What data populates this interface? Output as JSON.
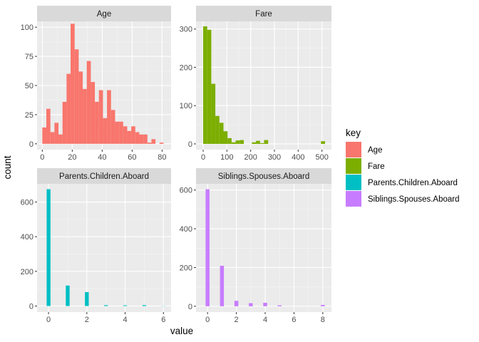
{
  "chart_data": {
    "type": "bar",
    "xlabel": "value",
    "ylabel": "count",
    "legend": {
      "title": "key",
      "position": "right",
      "entries": [
        {
          "label": "Age",
          "color": "#F8766D"
        },
        {
          "label": "Fare",
          "color": "#7CAE00"
        },
        {
          "label": "Parents.Children.Aboard",
          "color": "#00BFC4"
        },
        {
          "label": "Siblings.Spouses.Aboard",
          "color": "#C77CFF"
        }
      ]
    },
    "facets": [
      {
        "name": "Age",
        "color": "#F8766D",
        "xlim": [
          -3.5,
          86
        ],
        "ylim": [
          -5,
          105
        ],
        "xticks": [
          0,
          20,
          40,
          60,
          80
        ],
        "yticks": [
          0,
          25,
          50,
          75,
          100
        ],
        "bin_width": 2.7,
        "bins_start": 0,
        "values": [
          14,
          30,
          10,
          18,
          8,
          36,
          60,
          103,
          81,
          62,
          47,
          71,
          53,
          36,
          46,
          22,
          46,
          29,
          19,
          19,
          15,
          11,
          15,
          10,
          8,
          8,
          1,
          4,
          0,
          1
        ]
      },
      {
        "name": "Fare",
        "color": "#7CAE00",
        "xlim": [
          -30,
          540
        ],
        "ylim": [
          -15,
          320
        ],
        "xticks": [
          0,
          100,
          200,
          300,
          400,
          500
        ],
        "yticks": [
          0,
          100,
          200,
          300
        ],
        "bin_width": 17.1,
        "bins_start": 0,
        "values": [
          307,
          298,
          157,
          73,
          55,
          33,
          15,
          4,
          9,
          10,
          0,
          0,
          4,
          8,
          2,
          10,
          0,
          0,
          0,
          0,
          0,
          0,
          0,
          0,
          0,
          0,
          0,
          0,
          0,
          7
        ]
      },
      {
        "name": "Parents.Children.Aboard",
        "color": "#00BFC4",
        "xlim": [
          -0.6,
          6.4
        ],
        "ylim": [
          -35,
          705
        ],
        "xticks": [
          0,
          2,
          4,
          6
        ],
        "yticks": [
          0,
          200,
          400,
          600
        ],
        "bin_width": 0.2,
        "x": [
          0,
          1,
          2,
          3,
          4,
          5,
          6
        ],
        "values": [
          674,
          118,
          80,
          5,
          4,
          5,
          1
        ]
      },
      {
        "name": "Siblings.Spouses.Aboard",
        "color": "#C77CFF",
        "xlim": [
          -0.8,
          8.6
        ],
        "ylim": [
          -30,
          632
        ],
        "xticks": [
          0,
          2,
          4,
          6,
          8
        ],
        "yticks": [
          0,
          200,
          400,
          600
        ],
        "bin_width": 0.27,
        "x": [
          0,
          1,
          2,
          3,
          4,
          5,
          6,
          7,
          8
        ],
        "values": [
          604,
          209,
          28,
          16,
          18,
          5,
          0,
          0,
          7
        ]
      }
    ]
  }
}
